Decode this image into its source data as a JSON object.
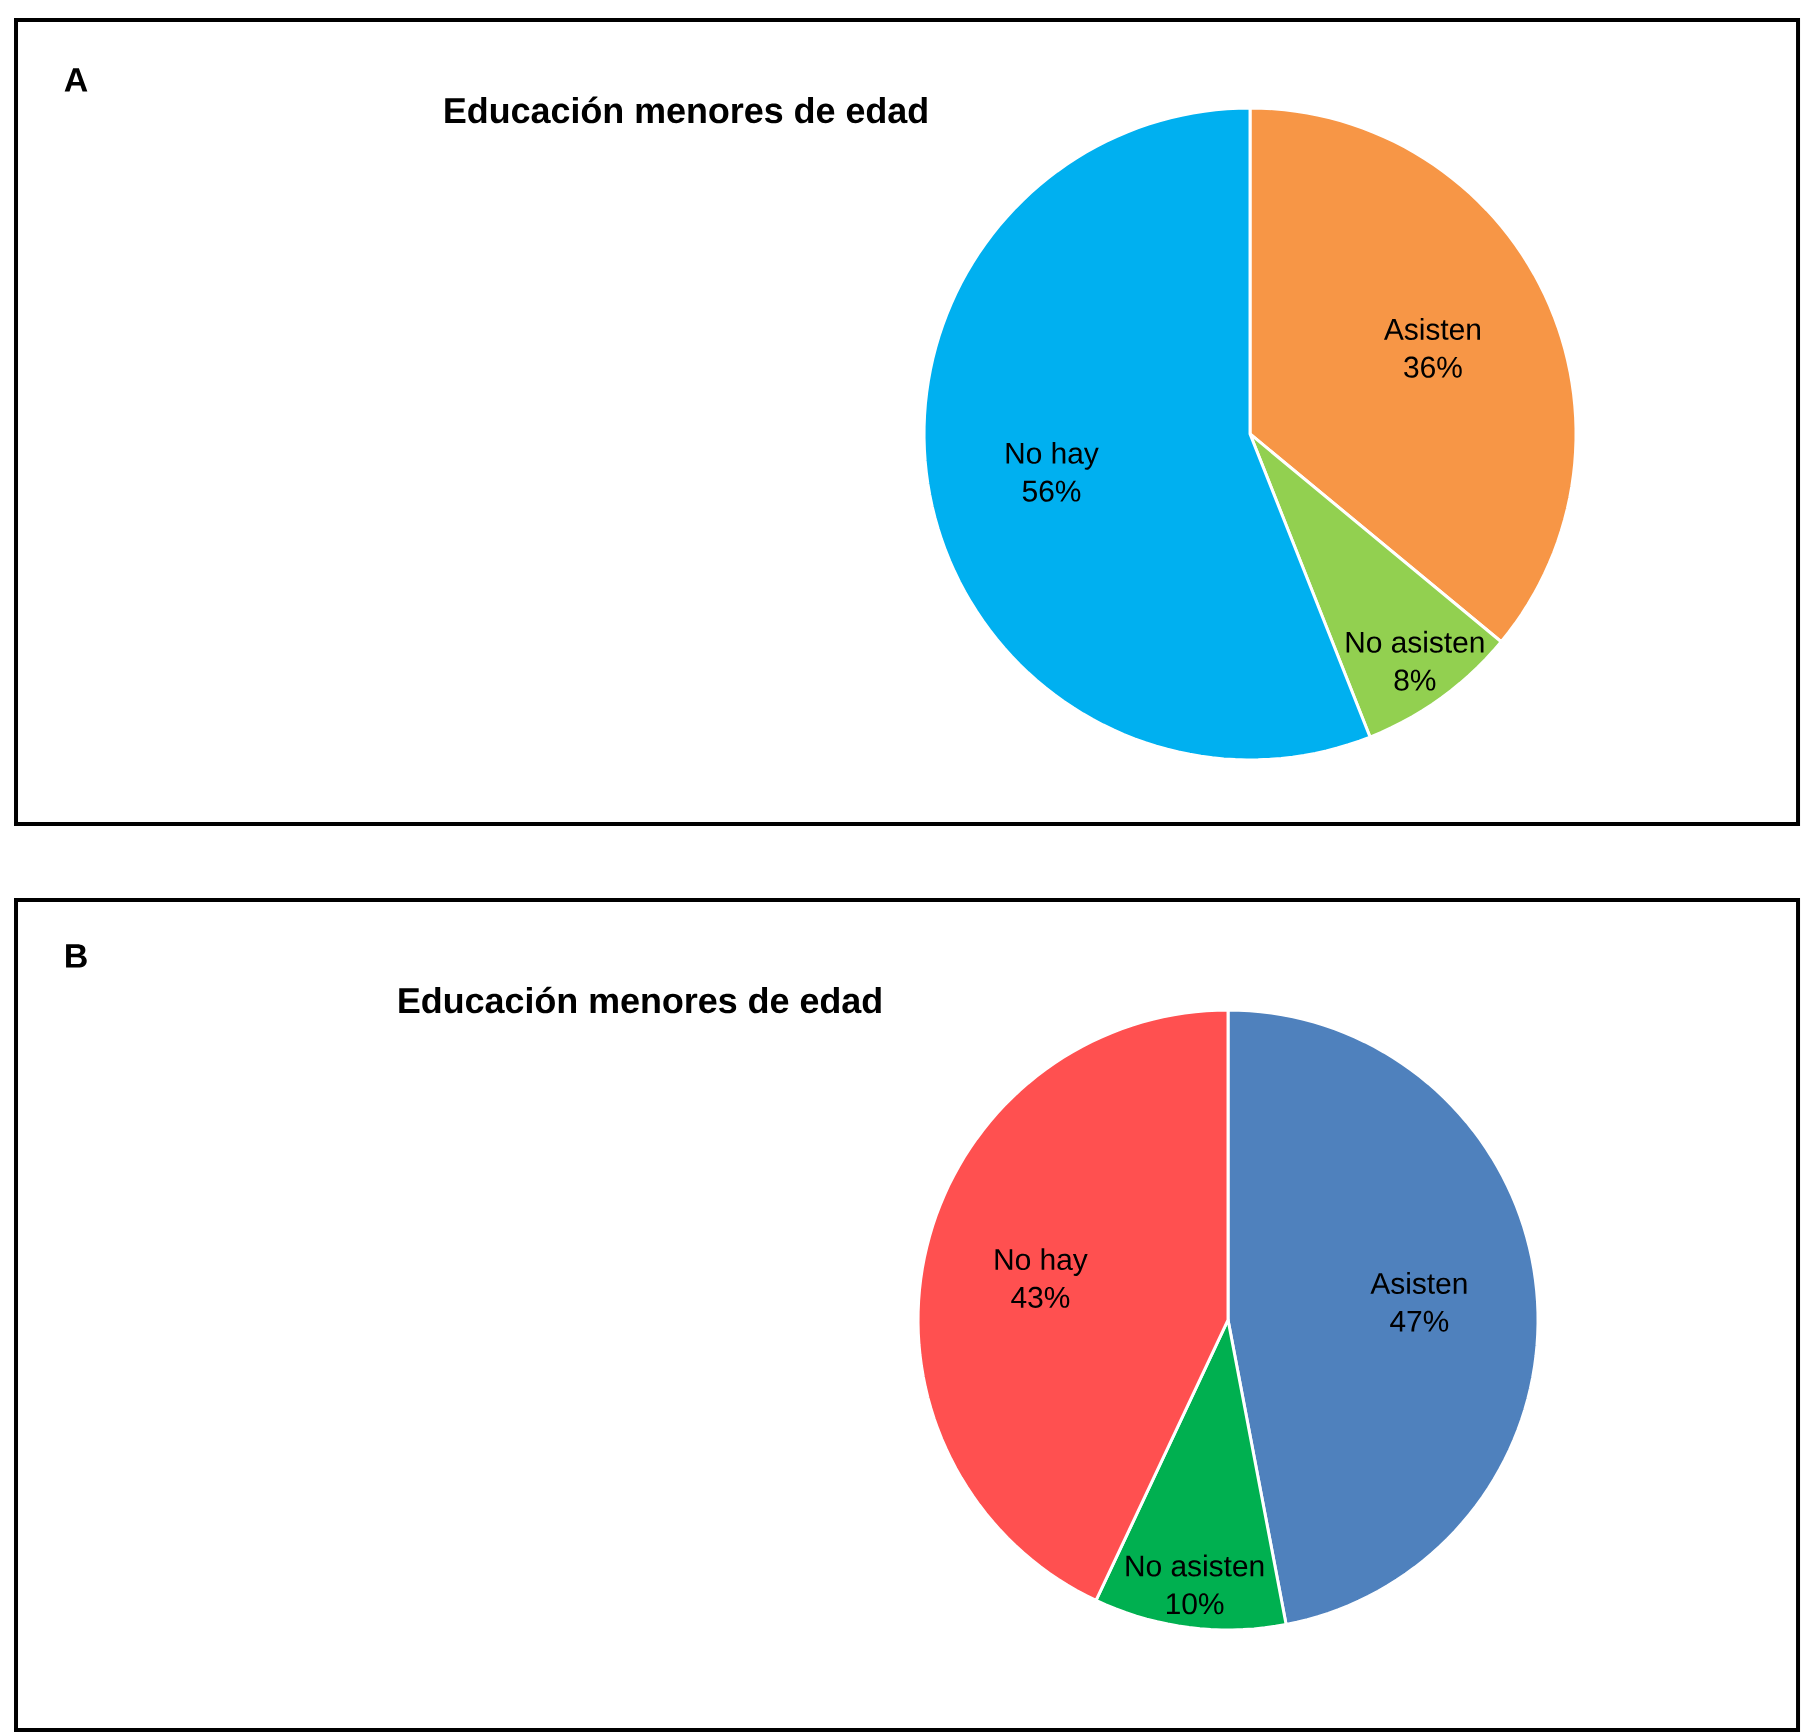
{
  "chart_data": [
    {
      "type": "pie",
      "title": "Educación menores de edad",
      "annotations": [
        "A"
      ],
      "categories": [
        "Asisten",
        "No asisten",
        "No hay"
      ],
      "values": [
        36,
        8,
        56
      ],
      "value_labels": [
        "36%",
        "8%",
        "56%"
      ],
      "colors": [
        "#f79646",
        "#92d050",
        "#00b0f0"
      ]
    },
    {
      "type": "pie",
      "title": "Educación menores de edad",
      "annotations": [
        "B"
      ],
      "categories": [
        "Asisten",
        "No asisten",
        "No hay"
      ],
      "values": [
        47,
        10,
        43
      ],
      "value_labels": [
        "47%",
        "10%",
        "43%"
      ],
      "colors": [
        "#4f81bd",
        "#00b050",
        "#ff5050"
      ]
    }
  ]
}
